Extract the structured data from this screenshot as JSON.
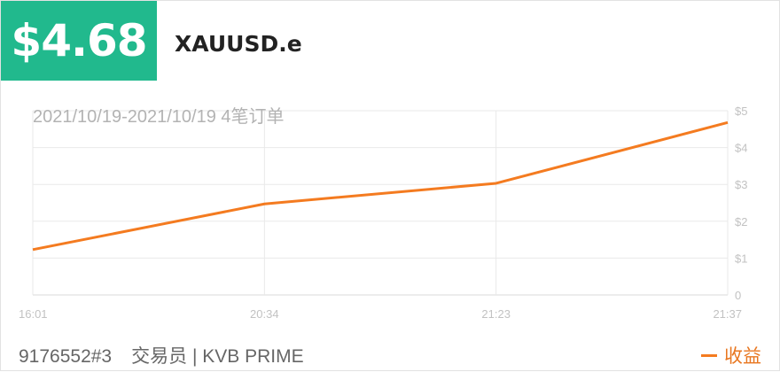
{
  "header": {
    "profit": "$4.68",
    "symbol": "XAUUSD.e",
    "range": "2021/10/19-2021/10/19 4笔订单"
  },
  "footer": {
    "account": "9176552#3",
    "trader": "交易员 | KVB PRIME",
    "legend_label": "收益"
  },
  "colors": {
    "accent": "#21b98d",
    "line": "#f47b20"
  },
  "chart_data": {
    "type": "line",
    "categories": [
      "16:01",
      "20:34",
      "21:23",
      "21:37"
    ],
    "series": [
      {
        "name": "收益",
        "values": [
          1.23,
          2.47,
          3.03,
          4.68
        ]
      }
    ],
    "y_ticks": [
      "0",
      "$1",
      "$2",
      "$3",
      "$4",
      "$5"
    ],
    "ylim": [
      0,
      5
    ],
    "grid": true,
    "legend_position": "bottom-right"
  }
}
